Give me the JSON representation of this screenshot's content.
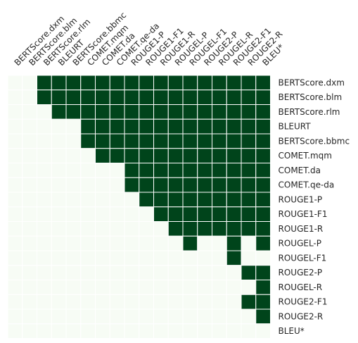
{
  "chart_data": {
    "type": "heatmap",
    "title": "",
    "xlabel": "",
    "ylabel": "",
    "legend": "none",
    "grid": true,
    "colors": {
      "low": "#f7fcf5",
      "high": "#00441b",
      "gridline": "#ffffff",
      "text": "#262626"
    },
    "x_labels": [
      "BERTScore.dxm",
      "BERTScore.blm",
      "BERTScore.rlm",
      "BLEURT",
      "BERTScore.bbmc",
      "COMET.mqm",
      "COMET.da",
      "COMET.qe-da",
      "ROUGE1-P",
      "ROUGE1-F1",
      "ROUGE1-R",
      "ROUGEL-P",
      "ROUGEL-F1",
      "ROUGE2-P",
      "ROUGEL-R",
      "ROUGE2-F1",
      "ROUGE2-R",
      "BLEU*"
    ],
    "y_labels": [
      "BERTScore.dxm",
      "BERTScore.blm",
      "BERTScore.rlm",
      "BLEURT",
      "BERTScore.bbmc",
      "COMET.mqm",
      "COMET.da",
      "COMET.qe-da",
      "ROUGE1-P",
      "ROUGE1-F1",
      "ROUGE1-R",
      "ROUGEL-P",
      "ROUGEL-F1",
      "ROUGE2-P",
      "ROUGEL-R",
      "ROUGE2-F1",
      "ROUGE2-R",
      "BLEU*"
    ],
    "matrix": [
      [
        0,
        0,
        1,
        1,
        1,
        1,
        1,
        1,
        1,
        1,
        1,
        1,
        1,
        1,
        1,
        1,
        1,
        1
      ],
      [
        0,
        0,
        1,
        1,
        1,
        1,
        1,
        1,
        1,
        1,
        1,
        1,
        1,
        1,
        1,
        1,
        1,
        1
      ],
      [
        0,
        0,
        0,
        1,
        1,
        1,
        1,
        1,
        1,
        1,
        1,
        1,
        1,
        1,
        1,
        1,
        1,
        1
      ],
      [
        0,
        0,
        0,
        0,
        0,
        1,
        1,
        1,
        1,
        1,
        1,
        1,
        1,
        1,
        1,
        1,
        1,
        1
      ],
      [
        0,
        0,
        0,
        0,
        0,
        1,
        1,
        1,
        1,
        1,
        1,
        1,
        1,
        1,
        1,
        1,
        1,
        1
      ],
      [
        0,
        0,
        0,
        0,
        0,
        0,
        1,
        1,
        1,
        1,
        1,
        1,
        1,
        1,
        1,
        1,
        1,
        1
      ],
      [
        0,
        0,
        0,
        0,
        0,
        0,
        0,
        0,
        1,
        1,
        1,
        1,
        1,
        1,
        1,
        1,
        1,
        1
      ],
      [
        0,
        0,
        0,
        0,
        0,
        0,
        0,
        0,
        1,
        1,
        1,
        1,
        1,
        1,
        1,
        1,
        1,
        1
      ],
      [
        0,
        0,
        0,
        0,
        0,
        0,
        0,
        0,
        0,
        1,
        1,
        1,
        1,
        1,
        1,
        1,
        1,
        1
      ],
      [
        0,
        0,
        0,
        0,
        0,
        0,
        0,
        0,
        0,
        0,
        1,
        1,
        1,
        1,
        1,
        1,
        1,
        1
      ],
      [
        0,
        0,
        0,
        0,
        0,
        0,
        0,
        0,
        0,
        0,
        0,
        1,
        1,
        1,
        1,
        1,
        1,
        1
      ],
      [
        0,
        0,
        0,
        0,
        0,
        0,
        0,
        0,
        0,
        0,
        0,
        0,
        1,
        0,
        0,
        1,
        0,
        1
      ],
      [
        0,
        0,
        0,
        0,
        0,
        0,
        0,
        0,
        0,
        0,
        0,
        0,
        0,
        0,
        0,
        1,
        0,
        0
      ],
      [
        0,
        0,
        0,
        0,
        0,
        0,
        0,
        0,
        0,
        0,
        0,
        0,
        0,
        0,
        0,
        0,
        1,
        1
      ],
      [
        0,
        0,
        0,
        0,
        0,
        0,
        0,
        0,
        0,
        0,
        0,
        0,
        0,
        0,
        0,
        0,
        0,
        1
      ],
      [
        0,
        0,
        0,
        0,
        0,
        0,
        0,
        0,
        0,
        0,
        0,
        0,
        0,
        0,
        0,
        0,
        1,
        1
      ],
      [
        0,
        0,
        0,
        0,
        0,
        0,
        0,
        0,
        0,
        0,
        0,
        0,
        0,
        0,
        0,
        0,
        0,
        1
      ],
      [
        0,
        0,
        0,
        0,
        0,
        0,
        0,
        0,
        0,
        0,
        0,
        0,
        0,
        0,
        0,
        0,
        0,
        0
      ]
    ]
  }
}
